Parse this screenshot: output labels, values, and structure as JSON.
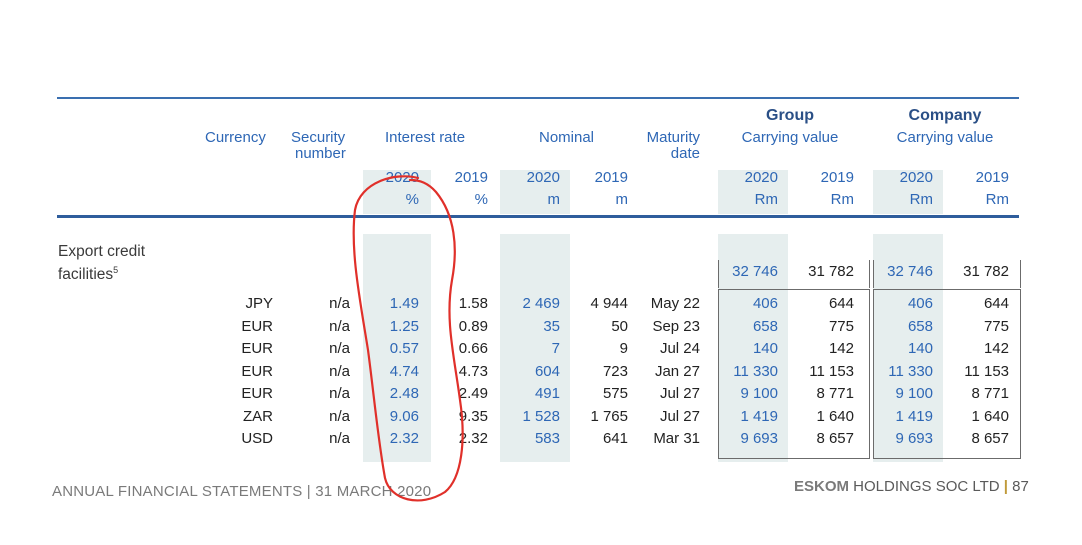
{
  "headers": {
    "group": "Group",
    "company": "Company",
    "currency": "Currency",
    "security_1": "Security",
    "security_2": "number",
    "interest_rate": "Interest rate",
    "nominal": "Nominal",
    "maturity_1": "Maturity",
    "maturity_2": "date",
    "carrying_group": "Carrying value",
    "carrying_company": "Carrying value",
    "years": [
      "2020",
      "2019",
      "2020",
      "2019",
      "2020",
      "2019",
      "2020",
      "2019"
    ],
    "units": [
      "%",
      "%",
      "m",
      "m",
      "Rm",
      "Rm",
      "Rm",
      "Rm"
    ]
  },
  "section": {
    "label_1": "Export credit",
    "label_2": "facilities",
    "footnote": "5",
    "totals": [
      "32 746",
      "31 782",
      "32 746",
      "31 782"
    ]
  },
  "rows": [
    {
      "currency": "JPY",
      "security": "n/a",
      "ir2020": "1.49",
      "ir2019": "1.58",
      "nom2020": "2 469",
      "nom2019": "4 944",
      "maturity": "May 22",
      "g2020": "406",
      "g2019": "644",
      "c2020": "406",
      "c2019": "644"
    },
    {
      "currency": "EUR",
      "security": "n/a",
      "ir2020": "1.25",
      "ir2019": "0.89",
      "nom2020": "35",
      "nom2019": "50",
      "maturity": "Sep 23",
      "g2020": "658",
      "g2019": "775",
      "c2020": "658",
      "c2019": "775"
    },
    {
      "currency": "EUR",
      "security": "n/a",
      "ir2020": "0.57",
      "ir2019": "0.66",
      "nom2020": "7",
      "nom2019": "9",
      "maturity": "Jul 24",
      "g2020": "140",
      "g2019": "142",
      "c2020": "140",
      "c2019": "142"
    },
    {
      "currency": "EUR",
      "security": "n/a",
      "ir2020": "4.74",
      "ir2019": "4.73",
      "nom2020": "604",
      "nom2019": "723",
      "maturity": "Jan 27",
      "g2020": "11 330",
      "g2019": "11 153",
      "c2020": "11 330",
      "c2019": "11 153"
    },
    {
      "currency": "EUR",
      "security": "n/a",
      "ir2020": "2.48",
      "ir2019": "2.49",
      "nom2020": "491",
      "nom2019": "575",
      "maturity": "Jul 27",
      "g2020": "9 100",
      "g2019": "8 771",
      "c2020": "9 100",
      "c2019": "8 771"
    },
    {
      "currency": "ZAR",
      "security": "n/a",
      "ir2020": "9.06",
      "ir2019": "9.35",
      "nom2020": "1 528",
      "nom2019": "1 765",
      "maturity": "Jul 27",
      "g2020": "1 419",
      "g2019": "1 640",
      "c2020": "1 419",
      "c2019": "1 640"
    },
    {
      "currency": "USD",
      "security": "n/a",
      "ir2020": "2.32",
      "ir2019": "2.32",
      "nom2020": "583",
      "nom2019": "641",
      "maturity": "Mar 31",
      "g2020": "9 693",
      "g2019": "8 657",
      "c2020": "9 693",
      "c2019": "8 657"
    }
  ],
  "footer": {
    "left": "ANNUAL FINANCIAL STATEMENTS | 31 MARCH 2020",
    "brand": "ESKOM",
    "right": " HOLDINGS SOC LTD",
    "separator": "|",
    "page": "87"
  },
  "colors": {
    "accent": "#2e67b5",
    "rule": "#2e5d9c",
    "shade": "#e6eeee",
    "annotation": "#e0302a"
  }
}
